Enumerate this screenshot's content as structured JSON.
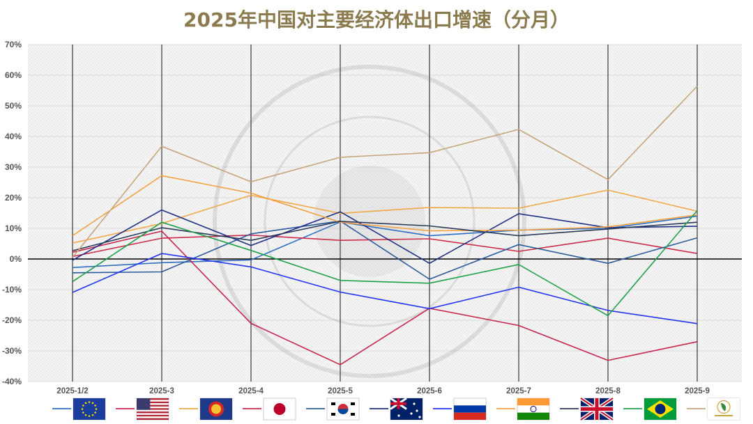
{
  "chart_data": {
    "type": "line",
    "title": "2025年中国对主要经济体出口增速（分月）",
    "categories": [
      "2025-1/2",
      "2025-3",
      "2025-4",
      "2025-5",
      "2025-6",
      "2025-7",
      "2025-8",
      "2025-9"
    ],
    "ylim": [
      -40,
      70
    ],
    "yticks": [
      -40,
      -30,
      -20,
      -10,
      0,
      10,
      20,
      30,
      40,
      50,
      60,
      70
    ],
    "ytick_suffix": "%",
    "grid": true,
    "legend_position": "bottom",
    "series": [
      {
        "key": "eu",
        "flag": "eu-flag",
        "color": "#2e6ec0",
        "values": [
          -2.8,
          -1.2,
          -0.3,
          12.1,
          7.6,
          9.4,
          10.0,
          14.0
        ]
      },
      {
        "key": "us",
        "flag": "us-flag",
        "color": "#c8264a",
        "values": [
          2.2,
          9.1,
          -21.0,
          -34.5,
          -16.1,
          -21.7,
          -33.1,
          -27.0
        ]
      },
      {
        "key": "asean",
        "flag": "asean-flag",
        "color": "#f0a848",
        "values": [
          5.2,
          11.6,
          20.8,
          14.9,
          16.8,
          16.6,
          22.5,
          15.6
        ]
      },
      {
        "key": "japan",
        "flag": "japan-flag",
        "color": "#cc2b4a",
        "values": [
          0.8,
          6.8,
          7.8,
          6.1,
          6.6,
          2.5,
          6.8,
          1.8
        ]
      },
      {
        "key": "korea",
        "flag": "korea-flag",
        "color": "#2c5b9c",
        "values": [
          -4.5,
          -4.2,
          8.2,
          12.4,
          -6.6,
          4.7,
          -1.4,
          6.9
        ]
      },
      {
        "key": "australia",
        "flag": "australia-flag",
        "color": "#1f2f86",
        "values": [
          -0.4,
          16.0,
          4.4,
          15.4,
          -1.4,
          14.8,
          10.2,
          10.7
        ]
      },
      {
        "key": "russia",
        "flag": "russia-flag",
        "color": "#2233ee",
        "values": [
          -10.9,
          1.8,
          -2.6,
          -10.8,
          -16.2,
          -9.2,
          -16.8,
          -21.1
        ]
      },
      {
        "key": "india",
        "flag": "india-flag",
        "color": "#f4a040",
        "values": [
          7.6,
          27.2,
          21.5,
          12.0,
          9.2,
          9.4,
          10.5,
          14.4
        ]
      },
      {
        "key": "uk",
        "flag": "uk-flag",
        "color": "#2b3a58",
        "values": [
          2.7,
          10.2,
          6.1,
          12.3,
          10.8,
          7.6,
          9.8,
          12.0
        ]
      },
      {
        "key": "brazil",
        "flag": "brazil-flag",
        "color": "#20a04a",
        "values": [
          -7.4,
          12.0,
          2.8,
          -7.0,
          -7.9,
          -1.8,
          -18.5,
          15.8
        ]
      },
      {
        "key": "au",
        "flag": "african-union-flag",
        "color": "#c4a57a",
        "values": [
          0.5,
          36.8,
          25.2,
          33.2,
          34.7,
          42.3,
          25.9,
          56.4
        ]
      }
    ]
  }
}
